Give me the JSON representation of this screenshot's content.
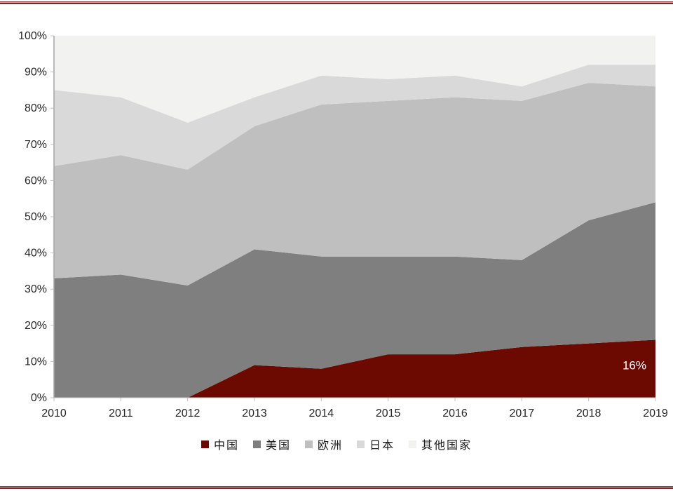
{
  "page": {
    "top_border": "maroon-rule",
    "bottom_border": "maroon-rule",
    "background": "#ffffff"
  },
  "chart_data": {
    "type": "area",
    "stacked": true,
    "percent": true,
    "title": "",
    "xlabel": "",
    "ylabel": "",
    "ylim": [
      0,
      100
    ],
    "grid": false,
    "legend_position": "bottom",
    "x": [
      "2010",
      "2011",
      "2012",
      "2013",
      "2014",
      "2015",
      "2016",
      "2017",
      "2018",
      "2019"
    ],
    "y_ticks": [
      "0%",
      "10%",
      "20%",
      "30%",
      "40%",
      "50%",
      "60%",
      "70%",
      "80%",
      "90%",
      "100%"
    ],
    "series": [
      {
        "id": "china",
        "name": "中国",
        "color": "#6c0a02",
        "values": [
          0,
          0,
          0,
          9,
          8,
          12,
          12,
          14,
          15,
          16
        ]
      },
      {
        "id": "usa",
        "name": "美国",
        "color": "#7f7f7f",
        "values": [
          33,
          34,
          31,
          32,
          31,
          27,
          27,
          24,
          34,
          38
        ]
      },
      {
        "id": "europe",
        "name": "欧洲",
        "color": "#bfbfbf",
        "values": [
          31,
          33,
          32,
          34,
          42,
          43,
          44,
          44,
          38,
          32
        ]
      },
      {
        "id": "japan",
        "name": "日本",
        "color": "#d9d9d9",
        "values": [
          21,
          16,
          13,
          8,
          8,
          6,
          6,
          4,
          5,
          6
        ]
      },
      {
        "id": "others",
        "name": "其他国家",
        "color": "#f2f2f1",
        "values": [
          15,
          17,
          24,
          17,
          11,
          12,
          11,
          14,
          8,
          8
        ]
      }
    ],
    "annotation": {
      "text": "16%",
      "year_index": 9,
      "value_mid": 9,
      "color": "#ffffff"
    },
    "axis": {
      "line_color": "#a6a6a6",
      "tick_color": "#bfbfbf",
      "label_color": "#262626"
    }
  }
}
